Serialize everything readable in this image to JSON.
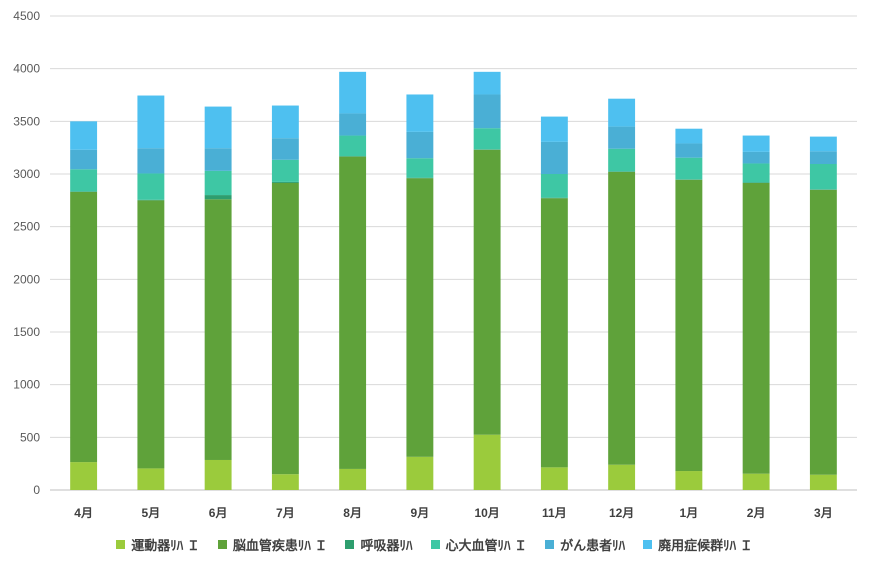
{
  "chart_data": {
    "type": "bar",
    "stacked": true,
    "title": "",
    "xlabel": "",
    "ylabel": "",
    "ylim": [
      0,
      4500
    ],
    "yticks": [
      0,
      500,
      1000,
      1500,
      2000,
      2500,
      3000,
      3500,
      4000,
      4500
    ],
    "ytick_labels": [
      "0",
      "500",
      "1000",
      "1500",
      "2000",
      "2500",
      "3000",
      "3500",
      "4000",
      "4500"
    ],
    "categories": [
      "4月",
      "5月",
      "6月",
      "7月",
      "8月",
      "9月",
      "10月",
      "11月",
      "12月",
      "1月",
      "2月",
      "3月"
    ],
    "grid": true,
    "legend_position": "bottom",
    "series": [
      {
        "name": "運動器ﾘﾊ Ｉ",
        "color": "#9BCB3C",
        "values": [
          265,
          205,
          285,
          150,
          200,
          315,
          525,
          215,
          240,
          180,
          155,
          145
        ]
      },
      {
        "name": "脳血管疾患ﾘﾊ Ｉ",
        "color": "#5FA23A",
        "values": [
          2565,
          2545,
          2475,
          2765,
          2965,
          2645,
          2705,
          2555,
          2780,
          2765,
          2760,
          2705
        ]
      },
      {
        "name": "呼吸器ﾘﾊ",
        "color": "#2E9E6E",
        "values": [
          5,
          5,
          40,
          10,
          5,
          5,
          5,
          5,
          5,
          5,
          5,
          5
        ]
      },
      {
        "name": "心大血管ﾘﾊ Ｉ",
        "color": "#3EC7A4",
        "values": [
          210,
          250,
          230,
          210,
          195,
          185,
          200,
          225,
          215,
          205,
          180,
          240
        ]
      },
      {
        "name": "がん患者ﾘﾊ",
        "color": "#4AAFD5",
        "values": [
          185,
          240,
          215,
          205,
          210,
          250,
          320,
          305,
          210,
          135,
          110,
          120
        ]
      },
      {
        "name": "廃用症候群ﾘﾊ Ｉ",
        "color": "#4EC0F0",
        "values": [
          270,
          500,
          395,
          310,
          395,
          355,
          215,
          240,
          265,
          140,
          155,
          140
        ]
      }
    ]
  }
}
